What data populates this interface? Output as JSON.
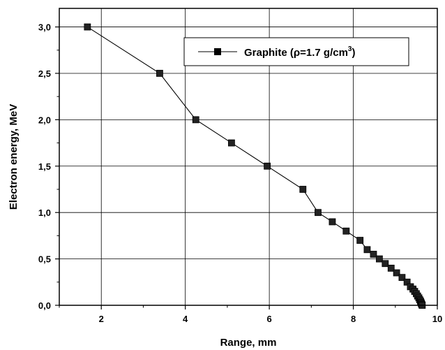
{
  "chart_data": {
    "type": "line",
    "title": "",
    "xlabel": "Range, mm",
    "ylabel": "Electron energy, MeV",
    "xlim": [
      1,
      10
    ],
    "ylim": [
      0,
      3.2
    ],
    "x_ticks": [
      2,
      4,
      6,
      8,
      10
    ],
    "x_tick_labels": [
      "2",
      "4",
      "6",
      "8",
      "10"
    ],
    "y_ticks": [
      0,
      0.5,
      1.0,
      1.5,
      2.0,
      2.5,
      3.0
    ],
    "y_tick_labels": [
      "0,0",
      "0,5",
      "1,0",
      "1,5",
      "2,0",
      "2,5",
      "3,0"
    ],
    "grid": true,
    "legend_position": "top-right",
    "legend": {
      "main": "Graphite (",
      "rho": "ρ",
      "value": "=1.7 g/cm",
      "superscript": "3",
      "close": ")"
    },
    "series": [
      {
        "name": "Graphite ( ρ=1.7 g/cm 3)",
        "color": "#000000",
        "marker": "square",
        "x": [
          1.67,
          3.39,
          4.25,
          5.1,
          5.95,
          6.8,
          7.16,
          7.5,
          7.83,
          8.16,
          8.33,
          8.48,
          8.62,
          8.76,
          8.9,
          9.03,
          9.16,
          9.28,
          9.36,
          9.42,
          9.46,
          9.5,
          9.53,
          9.56,
          9.58,
          9.6,
          9.61,
          9.62,
          9.63,
          9.64
        ],
        "y": [
          3.0,
          2.5,
          2.0,
          1.75,
          1.5,
          1.25,
          1.0,
          0.9,
          0.8,
          0.7,
          0.6,
          0.55,
          0.5,
          0.45,
          0.4,
          0.35,
          0.3,
          0.25,
          0.2,
          0.175,
          0.15,
          0.125,
          0.1,
          0.08,
          0.06,
          0.045,
          0.03,
          0.02,
          0.01,
          0.0
        ]
      }
    ]
  }
}
